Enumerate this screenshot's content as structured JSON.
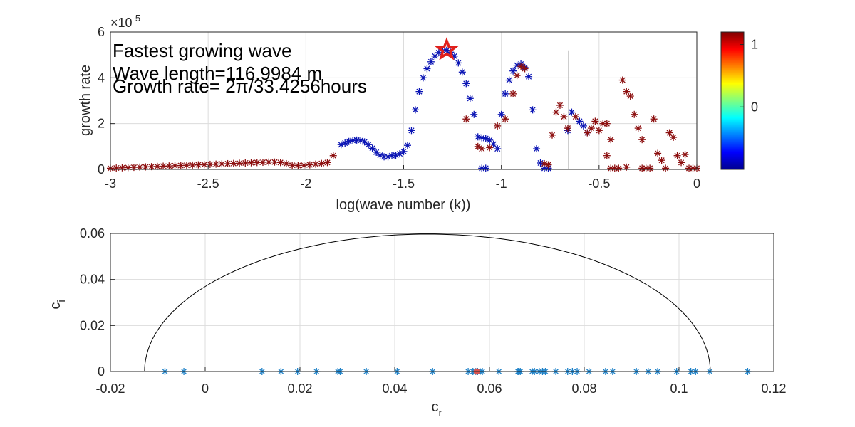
{
  "chart_data": [
    {
      "type": "scatter",
      "xlabel": "log(wave number (k))",
      "ylabel": "growth rate",
      "y_exponent_label": "×10",
      "y_exponent": "-5",
      "xlim": [
        -3,
        0
      ],
      "ylim": [
        0,
        6
      ],
      "xticks": [
        -3,
        -2.5,
        -2,
        -1.5,
        -1,
        -0.5,
        0
      ],
      "xtick_labels": [
        "-3",
        "-2.5",
        "-2",
        "-1.5",
        "-1",
        "-0.5",
        "0"
      ],
      "yticks": [
        0,
        2,
        4,
        6
      ],
      "ytick_labels": [
        "0",
        "2",
        "4",
        "6"
      ],
      "grid": true,
      "annotations": [
        "Fastest growing wave",
        "Wave length=116.9984 m",
        "Growth rate= 2π/33.4256hours"
      ],
      "fastest_point": {
        "x": -1.28,
        "y": 5.22
      },
      "vertical_line_x": -0.655,
      "vertical_line_top": 5.2,
      "colorbar": {
        "colormap": "jet",
        "ticks": [
          1,
          0
        ],
        "tick_labels": [
          "1",
          "0"
        ],
        "clim": [
          -1,
          1.2
        ]
      },
      "marker": "*",
      "series": [
        {
          "color_value": -1,
          "color": "#0a14b4",
          "points": [
            [
              -1.82,
              1.08
            ],
            [
              -1.8,
              1.15
            ],
            [
              -1.78,
              1.22
            ],
            [
              -1.76,
              1.26
            ],
            [
              -1.74,
              1.28
            ],
            [
              -1.72,
              1.27
            ],
            [
              -1.7,
              1.2
            ],
            [
              -1.68,
              1.08
            ],
            [
              -1.66,
              0.92
            ],
            [
              -1.64,
              0.75
            ],
            [
              -1.62,
              0.62
            ],
            [
              -1.6,
              0.55
            ],
            [
              -1.58,
              0.55
            ],
            [
              -1.56,
              0.6
            ],
            [
              -1.54,
              0.62
            ],
            [
              -1.52,
              0.68
            ],
            [
              -1.5,
              0.78
            ],
            [
              -1.48,
              1.05
            ],
            [
              -1.46,
              1.7
            ],
            [
              -1.44,
              2.6
            ],
            [
              -1.42,
              3.4
            ],
            [
              -1.4,
              4.0
            ],
            [
              -1.38,
              4.4
            ],
            [
              -1.36,
              4.7
            ],
            [
              -1.34,
              4.95
            ],
            [
              -1.32,
              5.1
            ],
            [
              -1.3,
              5.18
            ],
            [
              -1.28,
              5.2
            ],
            [
              -1.26,
              5.12
            ],
            [
              -1.24,
              4.95
            ],
            [
              -1.22,
              4.65
            ],
            [
              -1.2,
              4.25
            ],
            [
              -1.18,
              3.75
            ],
            [
              -1.16,
              3.1
            ],
            [
              -1.14,
              2.4
            ],
            [
              -1.12,
              1.42
            ],
            [
              -1.1,
              1.38
            ],
            [
              -1.08,
              1.35
            ],
            [
              -1.06,
              1.28
            ],
            [
              -1.04,
              1.1
            ],
            [
              -1.02,
              0.9
            ],
            [
              -1.0,
              2.4
            ],
            [
              -0.98,
              3.3
            ],
            [
              -0.96,
              3.9
            ],
            [
              -0.94,
              4.3
            ],
            [
              -0.92,
              4.55
            ],
            [
              -0.9,
              4.6
            ],
            [
              -0.88,
              4.45
            ],
            [
              -0.86,
              4.05
            ],
            [
              -0.84,
              2.6
            ],
            [
              -0.82,
              0.9
            ],
            [
              -0.8,
              0.28
            ],
            [
              -0.78,
              0.05
            ],
            [
              -0.76,
              0.05
            ],
            [
              -0.66,
              1.7
            ],
            [
              -0.64,
              2.5
            ],
            [
              -0.6,
              2.1
            ],
            [
              -0.58,
              1.9
            ],
            [
              -0.56,
              1.6
            ],
            [
              -1.1,
              0.05
            ],
            [
              -1.08,
              0.05
            ]
          ]
        },
        {
          "color_value": 1.1,
          "color": "#8c0f0f",
          "points": [
            [
              -1.18,
              2.2
            ],
            [
              -1.12,
              1.0
            ],
            [
              -1.1,
              0.9
            ],
            [
              -1.06,
              0.95
            ],
            [
              -1.02,
              1.9
            ],
            [
              -0.98,
              2.2
            ],
            [
              -0.94,
              3.3
            ],
            [
              -0.92,
              4.1
            ],
            [
              -0.9,
              4.5
            ],
            [
              -0.88,
              4.4
            ],
            [
              -0.78,
              0.25
            ],
            [
              -0.76,
              0.2
            ],
            [
              -0.74,
              1.5
            ],
            [
              -0.72,
              2.5
            ],
            [
              -0.7,
              2.8
            ],
            [
              -0.68,
              2.3
            ],
            [
              -0.66,
              1.8
            ],
            [
              -0.62,
              2.3
            ],
            [
              -0.56,
              1.6
            ],
            [
              -0.54,
              1.8
            ],
            [
              -0.52,
              2.1
            ],
            [
              -0.5,
              1.7
            ],
            [
              -0.48,
              2.0
            ],
            [
              -0.46,
              0.6
            ],
            [
              -0.44,
              1.3
            ],
            [
              -0.42,
              0.05
            ],
            [
              -0.4,
              0.05
            ],
            [
              -0.38,
              3.9
            ],
            [
              -0.36,
              3.4
            ],
            [
              -0.34,
              3.2
            ],
            [
              -0.32,
              2.4
            ],
            [
              -0.3,
              1.8
            ],
            [
              -0.28,
              1.3
            ],
            [
              -0.26,
              0.05
            ],
            [
              -0.24,
              0.05
            ],
            [
              -0.22,
              2.2
            ],
            [
              -0.2,
              0.7
            ],
            [
              -0.18,
              0.4
            ],
            [
              -0.16,
              0.05
            ],
            [
              -0.14,
              1.6
            ],
            [
              -0.12,
              1.4
            ],
            [
              -0.1,
              0.6
            ],
            [
              -0.08,
              0.3
            ],
            [
              -0.06,
              0.65
            ],
            [
              -0.04,
              0.05
            ],
            [
              -0.02,
              0.05
            ],
            [
              0.0,
              0.05
            ],
            [
              -0.44,
              0.05
            ],
            [
              -0.36,
              0.1
            ],
            [
              -0.28,
              0.05
            ],
            [
              -0.46,
              2.0
            ]
          ]
        },
        {
          "color_value": 1.1,
          "color": "#8c0f0f",
          "points": [
            [
              -3.0,
              0.05
            ],
            [
              -2.97,
              0.06
            ],
            [
              -2.94,
              0.07
            ],
            [
              -2.91,
              0.08
            ],
            [
              -2.88,
              0.09
            ],
            [
              -2.85,
              0.1
            ],
            [
              -2.82,
              0.11
            ],
            [
              -2.79,
              0.12
            ],
            [
              -2.76,
              0.13
            ],
            [
              -2.73,
              0.14
            ],
            [
              -2.7,
              0.15
            ],
            [
              -2.67,
              0.16
            ],
            [
              -2.64,
              0.17
            ],
            [
              -2.61,
              0.18
            ],
            [
              -2.58,
              0.19
            ],
            [
              -2.55,
              0.2
            ],
            [
              -2.52,
              0.21
            ],
            [
              -2.49,
              0.22
            ],
            [
              -2.46,
              0.23
            ],
            [
              -2.43,
              0.24
            ],
            [
              -2.4,
              0.25
            ],
            [
              -2.37,
              0.26
            ],
            [
              -2.34,
              0.27
            ],
            [
              -2.31,
              0.28
            ],
            [
              -2.28,
              0.29
            ],
            [
              -2.25,
              0.3
            ],
            [
              -2.22,
              0.31
            ],
            [
              -2.19,
              0.32
            ],
            [
              -2.16,
              0.32
            ],
            [
              -2.13,
              0.3
            ],
            [
              -2.1,
              0.25
            ],
            [
              -2.07,
              0.18
            ],
            [
              -2.04,
              0.17
            ],
            [
              -2.01,
              0.18
            ],
            [
              -1.98,
              0.2
            ],
            [
              -1.95,
              0.23
            ],
            [
              -1.92,
              0.26
            ],
            [
              -1.89,
              0.3
            ],
            [
              -1.86,
              0.6
            ]
          ]
        }
      ]
    },
    {
      "type": "scatter",
      "xlabel": "c",
      "xlabel_sub": "r",
      "ylabel": "c",
      "ylabel_sub": "i",
      "xlim": [
        -0.02,
        0.12
      ],
      "ylim": [
        0,
        0.06
      ],
      "xticks": [
        -0.02,
        0,
        0.02,
        0.04,
        0.06,
        0.08,
        0.1,
        0.12
      ],
      "xtick_labels": [
        "-0.02",
        "0",
        "0.02",
        "0.04",
        "0.06",
        "0.08",
        "0.1",
        "0.12"
      ],
      "yticks": [
        0,
        0.02,
        0.04,
        0.06
      ],
      "ytick_labels": [
        "0",
        "0.02",
        "0.04",
        "0.06"
      ],
      "grid": true,
      "semicircle": {
        "x_min": -0.0128,
        "x_max": 0.1066,
        "peak": 0.0597
      },
      "series": [
        {
          "color": "#1f82c8",
          "marker": "*",
          "x": [
            -0.0085,
            -0.0045,
            0.012,
            0.016,
            0.0195,
            0.0235,
            0.028,
            0.0285,
            0.034,
            0.0405,
            0.048,
            0.0555,
            0.0565,
            0.057,
            0.0575,
            0.058,
            0.0585,
            0.062,
            0.066,
            0.0662,
            0.0665,
            0.069,
            0.0695,
            0.0705,
            0.0712,
            0.0718,
            0.074,
            0.0765,
            0.0775,
            0.0785,
            0.081,
            0.0845,
            0.086,
            0.091,
            0.0935,
            0.0955,
            0.0995,
            0.1025,
            0.1035,
            0.1065,
            0.1145
          ],
          "y": [
            0,
            0,
            0,
            0,
            0,
            0,
            0,
            0,
            0,
            0,
            0,
            0,
            0,
            0,
            0,
            0,
            0,
            0,
            0,
            0,
            0,
            0,
            0,
            0,
            0,
            0,
            0,
            0,
            0,
            0,
            0,
            0,
            0,
            0,
            0,
            0,
            0,
            0,
            0,
            0,
            0
          ]
        },
        {
          "color": "#d9534f",
          "marker": "o",
          "x": [
            0.0573
          ],
          "y": [
            0
          ]
        }
      ]
    }
  ]
}
